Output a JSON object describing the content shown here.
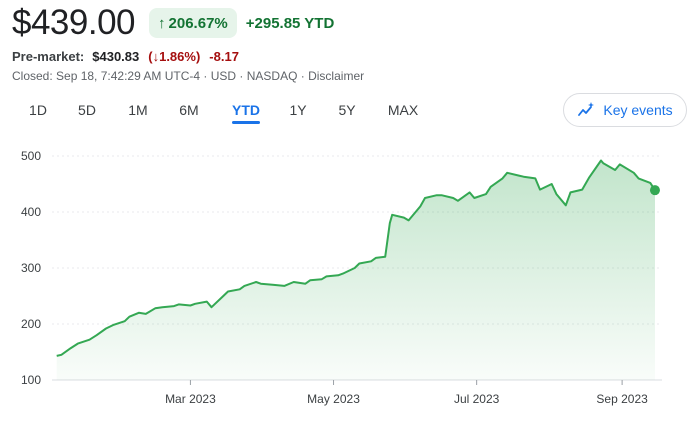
{
  "quote": {
    "price": "$439.00",
    "change_pct": "206.67%",
    "change_abs": "+295.85 YTD"
  },
  "premarket": {
    "label": "Pre-market:",
    "price": "$430.83",
    "pct": "(↓1.86%)",
    "abs": "-8.17"
  },
  "closed_info": "Closed: Sep 18, 7:42:29 AM UTC-4 · USD · NASDAQ · Disclaimer",
  "tabs": [
    {
      "label": "1D"
    },
    {
      "label": "5D"
    },
    {
      "label": "1M"
    },
    {
      "label": "6M"
    },
    {
      "label": "YTD",
      "active": true
    },
    {
      "label": "1Y"
    },
    {
      "label": "5Y"
    },
    {
      "label": "MAX"
    }
  ],
  "key_events_label": "Key events",
  "colors": {
    "positive": "#137333",
    "negative": "#a50e0e",
    "accent": "#1a73e8",
    "line": "#34a853"
  },
  "chart_data": {
    "type": "area",
    "yticks": [
      100,
      200,
      300,
      400,
      500
    ],
    "ylim": [
      100,
      500
    ],
    "xticks": [
      {
        "label": "Mar 2023",
        "date": "2023-03-01"
      },
      {
        "label": "May 2023",
        "date": "2023-05-01"
      },
      {
        "label": "Jul 2023",
        "date": "2023-07-01"
      },
      {
        "label": "Sep 2023",
        "date": "2023-09-01"
      }
    ],
    "series": [
      {
        "x": [
          "2023-01-03",
          "2023-01-05",
          "2023-01-09",
          "2023-01-12",
          "2023-01-17",
          "2023-01-20",
          "2023-01-24",
          "2023-01-27",
          "2023-02-01",
          "2023-02-03",
          "2023-02-07",
          "2023-02-10",
          "2023-02-14",
          "2023-02-17",
          "2023-02-22",
          "2023-02-24",
          "2023-03-01",
          "2023-03-03",
          "2023-03-08",
          "2023-03-10",
          "2023-03-15",
          "2023-03-17",
          "2023-03-22",
          "2023-03-24",
          "2023-03-29",
          "2023-03-31",
          "2023-04-05",
          "2023-04-10",
          "2023-04-14",
          "2023-04-19",
          "2023-04-21",
          "2023-04-26",
          "2023-04-28",
          "2023-05-03",
          "2023-05-05",
          "2023-05-10",
          "2023-05-12",
          "2023-05-17",
          "2023-05-19",
          "2023-05-23",
          "2023-05-25",
          "2023-05-26",
          "2023-05-31",
          "2023-06-02",
          "2023-06-07",
          "2023-06-09",
          "2023-06-14",
          "2023-06-16",
          "2023-06-21",
          "2023-06-23",
          "2023-06-28",
          "2023-06-30",
          "2023-07-05",
          "2023-07-07",
          "2023-07-12",
          "2023-07-14",
          "2023-07-19",
          "2023-07-21",
          "2023-07-26",
          "2023-07-28",
          "2023-08-02",
          "2023-08-04",
          "2023-08-08",
          "2023-08-10",
          "2023-08-15",
          "2023-08-18",
          "2023-08-23",
          "2023-08-24",
          "2023-08-29",
          "2023-08-31",
          "2023-09-06",
          "2023-09-08",
          "2023-09-13",
          "2023-09-15"
        ],
        "values": [
          143,
          145,
          157,
          165,
          172,
          180,
          192,
          198,
          205,
          213,
          220,
          218,
          228,
          230,
          232,
          235,
          233,
          236,
          240,
          230,
          250,
          258,
          262,
          268,
          275,
          272,
          270,
          268,
          275,
          272,
          278,
          280,
          285,
          287,
          290,
          300,
          308,
          312,
          318,
          320,
          380,
          395,
          390,
          385,
          410,
          425,
          430,
          430,
          425,
          420,
          435,
          425,
          432,
          445,
          460,
          470,
          465,
          463,
          460,
          440,
          450,
          432,
          412,
          435,
          440,
          462,
          492,
          487,
          475,
          485,
          470,
          460,
          452,
          439
        ]
      }
    ]
  }
}
